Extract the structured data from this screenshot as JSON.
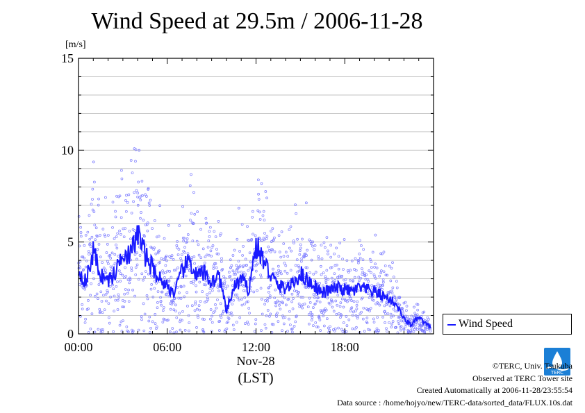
{
  "chart_data": {
    "type": "scatter",
    "title": "Wind Speed at 29.5m / 2006-11-28",
    "ylabel": "[m/s]",
    "xlabel": "(LST)",
    "date_label": "Nov-28",
    "ylim": [
      0,
      15
    ],
    "xlim_hours": [
      0,
      24
    ],
    "y_ticks": [
      "0",
      "5",
      "10",
      "15"
    ],
    "x_ticks": [
      "00:00",
      "06:00",
      "12:00",
      "18:00"
    ],
    "grid": true,
    "legend_position": "right",
    "series": [
      {
        "name": "Wind Speed",
        "color": "#1a1aff",
        "scatter_color": "#7b7bff",
        "x_hours": [
          0,
          0.5,
          1,
          1.5,
          2,
          2.5,
          3,
          3.5,
          4,
          4.5,
          5,
          5.5,
          6,
          6.5,
          7,
          7.5,
          8,
          8.5,
          9,
          9.5,
          10,
          10.5,
          11,
          11.5,
          12,
          12.5,
          13,
          13.5,
          14,
          14.5,
          15,
          15.5,
          16,
          16.5,
          17,
          17.5,
          18,
          18.5,
          19,
          19.5,
          20,
          20.5,
          21,
          21.5,
          22,
          22.5,
          23,
          23.5,
          24
        ],
        "y_mean": [
          3.5,
          2.8,
          4.5,
          3.2,
          2.9,
          3.3,
          4.6,
          4.2,
          5.5,
          4.3,
          3.6,
          3.0,
          2.6,
          2.2,
          3.4,
          4.0,
          3.1,
          3.3,
          2.8,
          3.2,
          1.2,
          2.5,
          3.0,
          2.4,
          4.8,
          4.0,
          3.2,
          2.6,
          2.5,
          2.7,
          3.3,
          2.9,
          2.6,
          2.2,
          2.4,
          2.5,
          2.4,
          2.3,
          2.5,
          2.4,
          2.3,
          2.1,
          1.9,
          1.6,
          0.8,
          0.5,
          0.9,
          0.5,
          0.3
        ]
      }
    ]
  },
  "footer": {
    "copyright": "©TERC, Univ. Tsukuba",
    "site": "Observed at TERC Tower site",
    "created": "Created Automatically at 2006-11-28/23:55:54",
    "source": "Data source : /home/hojyo/new/TERC-data/sorted_data/FLUX.10s.dat"
  },
  "logo": {
    "icon": "terc-logo-icon",
    "text": "TERC",
    "color": "#1b7fd6"
  }
}
